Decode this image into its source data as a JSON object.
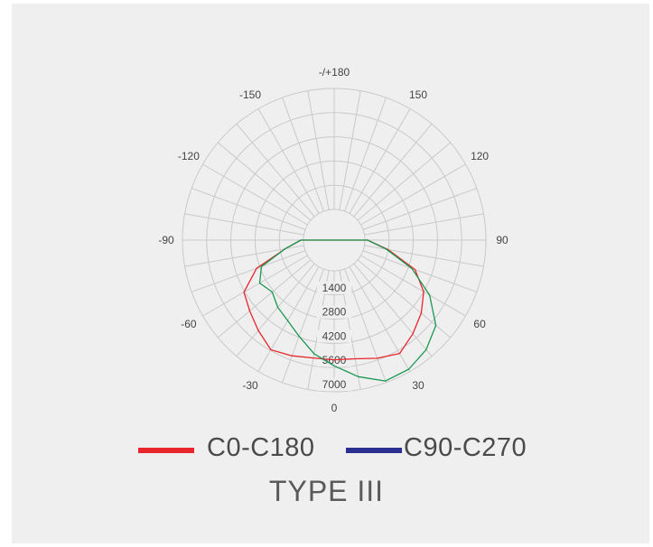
{
  "chart_data": {
    "type": "polar",
    "title": "TYPE III",
    "angle_labels": [
      {
        "angle": 180,
        "text": "-/+180"
      },
      {
        "angle": 150,
        "text": "150"
      },
      {
        "angle": 120,
        "text": "120"
      },
      {
        "angle": 90,
        "text": "90"
      },
      {
        "angle": 60,
        "text": "60"
      },
      {
        "angle": 30,
        "text": "30"
      },
      {
        "angle": 0,
        "text": "0"
      },
      {
        "angle": -30,
        "text": "-30"
      },
      {
        "angle": -60,
        "text": "-60"
      },
      {
        "angle": -90,
        "text": "-90"
      },
      {
        "angle": -120,
        "text": "-120"
      },
      {
        "angle": -150,
        "text": "-150"
      }
    ],
    "radial_ticks": [
      "1400",
      "2800",
      "4200",
      "5600",
      "7000"
    ],
    "radial_max": 7000,
    "grid_step_deg": 10,
    "grid": true,
    "series": [
      {
        "name": "C0-C180",
        "color": "#e8262b",
        "points": [
          {
            "angle": -90,
            "value": 150
          },
          {
            "angle": -80,
            "value": 1100
          },
          {
            "angle": -70,
            "value": 3000
          },
          {
            "angle": -60,
            "value": 4250
          },
          {
            "angle": -50,
            "value": 4600
          },
          {
            "angle": -40,
            "value": 5050
          },
          {
            "angle": -30,
            "value": 5550
          },
          {
            "angle": -20,
            "value": 5350
          },
          {
            "angle": -10,
            "value": 5150
          },
          {
            "angle": 0,
            "value": 5150
          },
          {
            "angle": 10,
            "value": 5200
          },
          {
            "angle": 20,
            "value": 5500
          },
          {
            "angle": 30,
            "value": 5800
          },
          {
            "angle": 40,
            "value": 5300
          },
          {
            "angle": 50,
            "value": 4800
          },
          {
            "angle": 60,
            "value": 4200
          },
          {
            "angle": 70,
            "value": 3200
          },
          {
            "angle": 80,
            "value": 1400
          },
          {
            "angle": 90,
            "value": 150
          }
        ]
      },
      {
        "name": "C90-C270",
        "color": "#2b2f8f",
        "points": []
      },
      {
        "name": "",
        "color": "#1a9850",
        "points": [
          {
            "angle": -90,
            "value": 150
          },
          {
            "angle": -80,
            "value": 1100
          },
          {
            "angle": -70,
            "value": 2700
          },
          {
            "angle": -60,
            "value": 3200
          },
          {
            "angle": -50,
            "value": 2900
          },
          {
            "angle": -40,
            "value": 3300
          },
          {
            "angle": -30,
            "value": 3600
          },
          {
            "angle": -20,
            "value": 4150
          },
          {
            "angle": -10,
            "value": 4900
          },
          {
            "angle": 0,
            "value": 5500
          },
          {
            "angle": 10,
            "value": 6250
          },
          {
            "angle": 20,
            "value": 6900
          },
          {
            "angle": 30,
            "value": 6850
          },
          {
            "angle": 40,
            "value": 6500
          },
          {
            "angle": 50,
            "value": 5900
          },
          {
            "angle": 60,
            "value": 4600
          },
          {
            "angle": 70,
            "value": 3000
          },
          {
            "angle": 80,
            "value": 1300
          },
          {
            "angle": 90,
            "value": 150
          }
        ]
      }
    ]
  },
  "legend": {
    "items": [
      {
        "label": "C0-C180",
        "color": "#e8262b"
      },
      {
        "label": "C90-C270",
        "color": "#2b2f8f"
      }
    ]
  }
}
